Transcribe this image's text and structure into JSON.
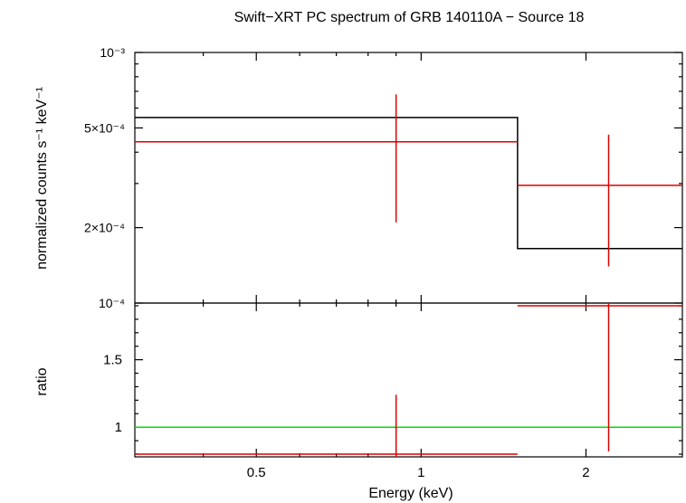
{
  "title": "Swift−XRT PC spectrum of GRB 140110A − Source 18",
  "colors": {
    "model": "#000000",
    "data": "#dd0000",
    "unity": "#00dd00",
    "axes": "#000000"
  },
  "chart_data": [
    {
      "type": "line",
      "panel": "spectrum",
      "ylabel": "normalized counts s⁻¹ keV⁻¹",
      "yscale": "log",
      "ylim": [
        0.0001,
        0.001
      ],
      "ytick_labels": [
        {
          "value": 0.001,
          "label": "10⁻³"
        },
        {
          "value": 0.0005,
          "label": "5×10⁻⁴"
        },
        {
          "value": 0.0002,
          "label": "2×10⁻⁴"
        },
        {
          "value": 0.0001,
          "label": "10⁻⁴"
        }
      ],
      "series": [
        {
          "kind": "model",
          "steps": [
            {
              "x0": 0.3,
              "x1": 1.5,
              "y": 0.00055
            },
            {
              "x0": 1.5,
              "x1": 3.0,
              "y": 0.000165
            }
          ]
        },
        {
          "kind": "data",
          "points": [
            {
              "x": 0.9,
              "xlo": 0.3,
              "xhi": 1.5,
              "y": 0.00044,
              "ylo": 0.00021,
              "yhi": 0.00068
            },
            {
              "x": 2.2,
              "xlo": 1.5,
              "xhi": 3.0,
              "y": 0.000295,
              "ylo": 0.00014,
              "yhi": 0.00047
            }
          ]
        }
      ]
    },
    {
      "type": "line",
      "panel": "ratio",
      "ylabel": "ratio",
      "xlabel": "Energy (keV)",
      "xscale": "log",
      "xlim": [
        0.3,
        3.0
      ],
      "xticks": [
        {
          "value": 0.5,
          "label": "0.5"
        },
        {
          "value": 1,
          "label": "1"
        },
        {
          "value": 2,
          "label": "2"
        }
      ],
      "ylim": [
        0.78,
        1.92
      ],
      "yticks": [
        {
          "value": 1,
          "label": "1"
        },
        {
          "value": 1.5,
          "label": "1.5"
        }
      ],
      "series": [
        {
          "kind": "unity",
          "y": 1.0
        },
        {
          "kind": "data",
          "points": [
            {
              "x": 0.9,
              "xlo": 0.3,
              "xhi": 1.5,
              "y": 0.8,
              "ylo": 0.78,
              "yhi": 1.24
            },
            {
              "x": 2.2,
              "xlo": 1.5,
              "xhi": 3.0,
              "y": 1.9,
              "ylo": 0.82,
              "yhi": 1.92
            }
          ]
        }
      ]
    }
  ]
}
